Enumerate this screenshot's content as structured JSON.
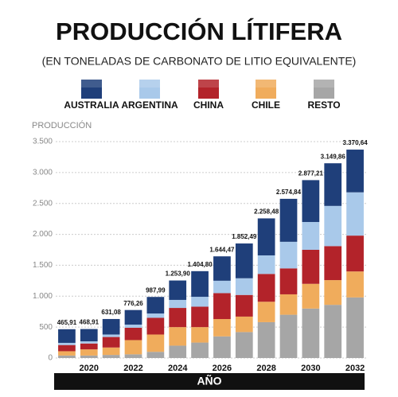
{
  "chart_data": {
    "type": "stacked_bar",
    "title": "PRODUCCIÓN LÍTIFERA",
    "subtitle": "(EN TONELADAS DE CARBONATO DE LITIO EQUIVALENTE)",
    "y_label": "PRODUCCIÓN",
    "x_label": "AÑO",
    "categories": [
      null,
      "2020",
      null,
      "2022",
      null,
      "2024",
      null,
      "2026",
      null,
      "2028",
      null,
      "2030",
      null,
      "2032"
    ],
    "series": [
      {
        "name": "RESTO",
        "color": "#a6a6a6",
        "values": [
          40,
          40,
          50,
          60,
          100,
          200,
          250,
          350,
          420,
          580,
          700,
          800,
          860,
          980
        ]
      },
      {
        "name": "CHILE",
        "color": "#f0ac5c",
        "values": [
          70,
          100,
          120,
          230,
          280,
          300,
          250,
          280,
          250,
          330,
          330,
          400,
          400,
          420
        ]
      },
      {
        "name": "CHINA",
        "color": "#b3232a",
        "values": [
          100,
          95,
          170,
          200,
          270,
          310,
          330,
          420,
          350,
          450,
          420,
          550,
          550,
          580
        ]
      },
      {
        "name": "ARGENTINA",
        "color": "#a9c9ea",
        "values": [
          35,
          35,
          40,
          50,
          70,
          130,
          160,
          200,
          270,
          300,
          430,
          450,
          650,
          700
        ]
      },
      {
        "name": "AUSTRALIA",
        "color": "#1f3f7a",
        "values": [
          220.91,
          198.91,
          251.08,
          236.26,
          267.99,
          313.9,
          414.8,
          394.47,
          562.49,
          598.48,
          694.84,
          677.21,
          689.86,
          690.64
        ]
      }
    ],
    "legend_order": [
      4,
      3,
      2,
      1,
      0
    ],
    "totals": [
      465.91,
      468.91,
      631.08,
      776.26,
      987.99,
      1253.9,
      1404.8,
      1644.47,
      1852.49,
      2258.48,
      2574.84,
      2877.21,
      3149.86,
      3370.64
    ],
    "total_labels": [
      "465,91",
      "468,91",
      "631,08",
      "776,26",
      "987,99",
      "1.253,90",
      "1.404,80",
      "1.644,47",
      "1.852,49",
      "2.258,48",
      "2.574,84",
      "2.877,21",
      "3.149,86",
      "3.370,64"
    ],
    "ylim": [
      0,
      3500
    ],
    "yticks": [
      0,
      500,
      {
        "value": 1000,
        "label": "1.000"
      },
      {
        "value": 1500,
        "label": "1.500"
      },
      {
        "value": 2000,
        "label": "2.000"
      },
      {
        "value": 2500,
        "label": "2.500"
      },
      {
        "value": 3000,
        "label": "3.000"
      },
      {
        "value": 3500,
        "label": "3.500"
      }
    ],
    "grid": true
  }
}
